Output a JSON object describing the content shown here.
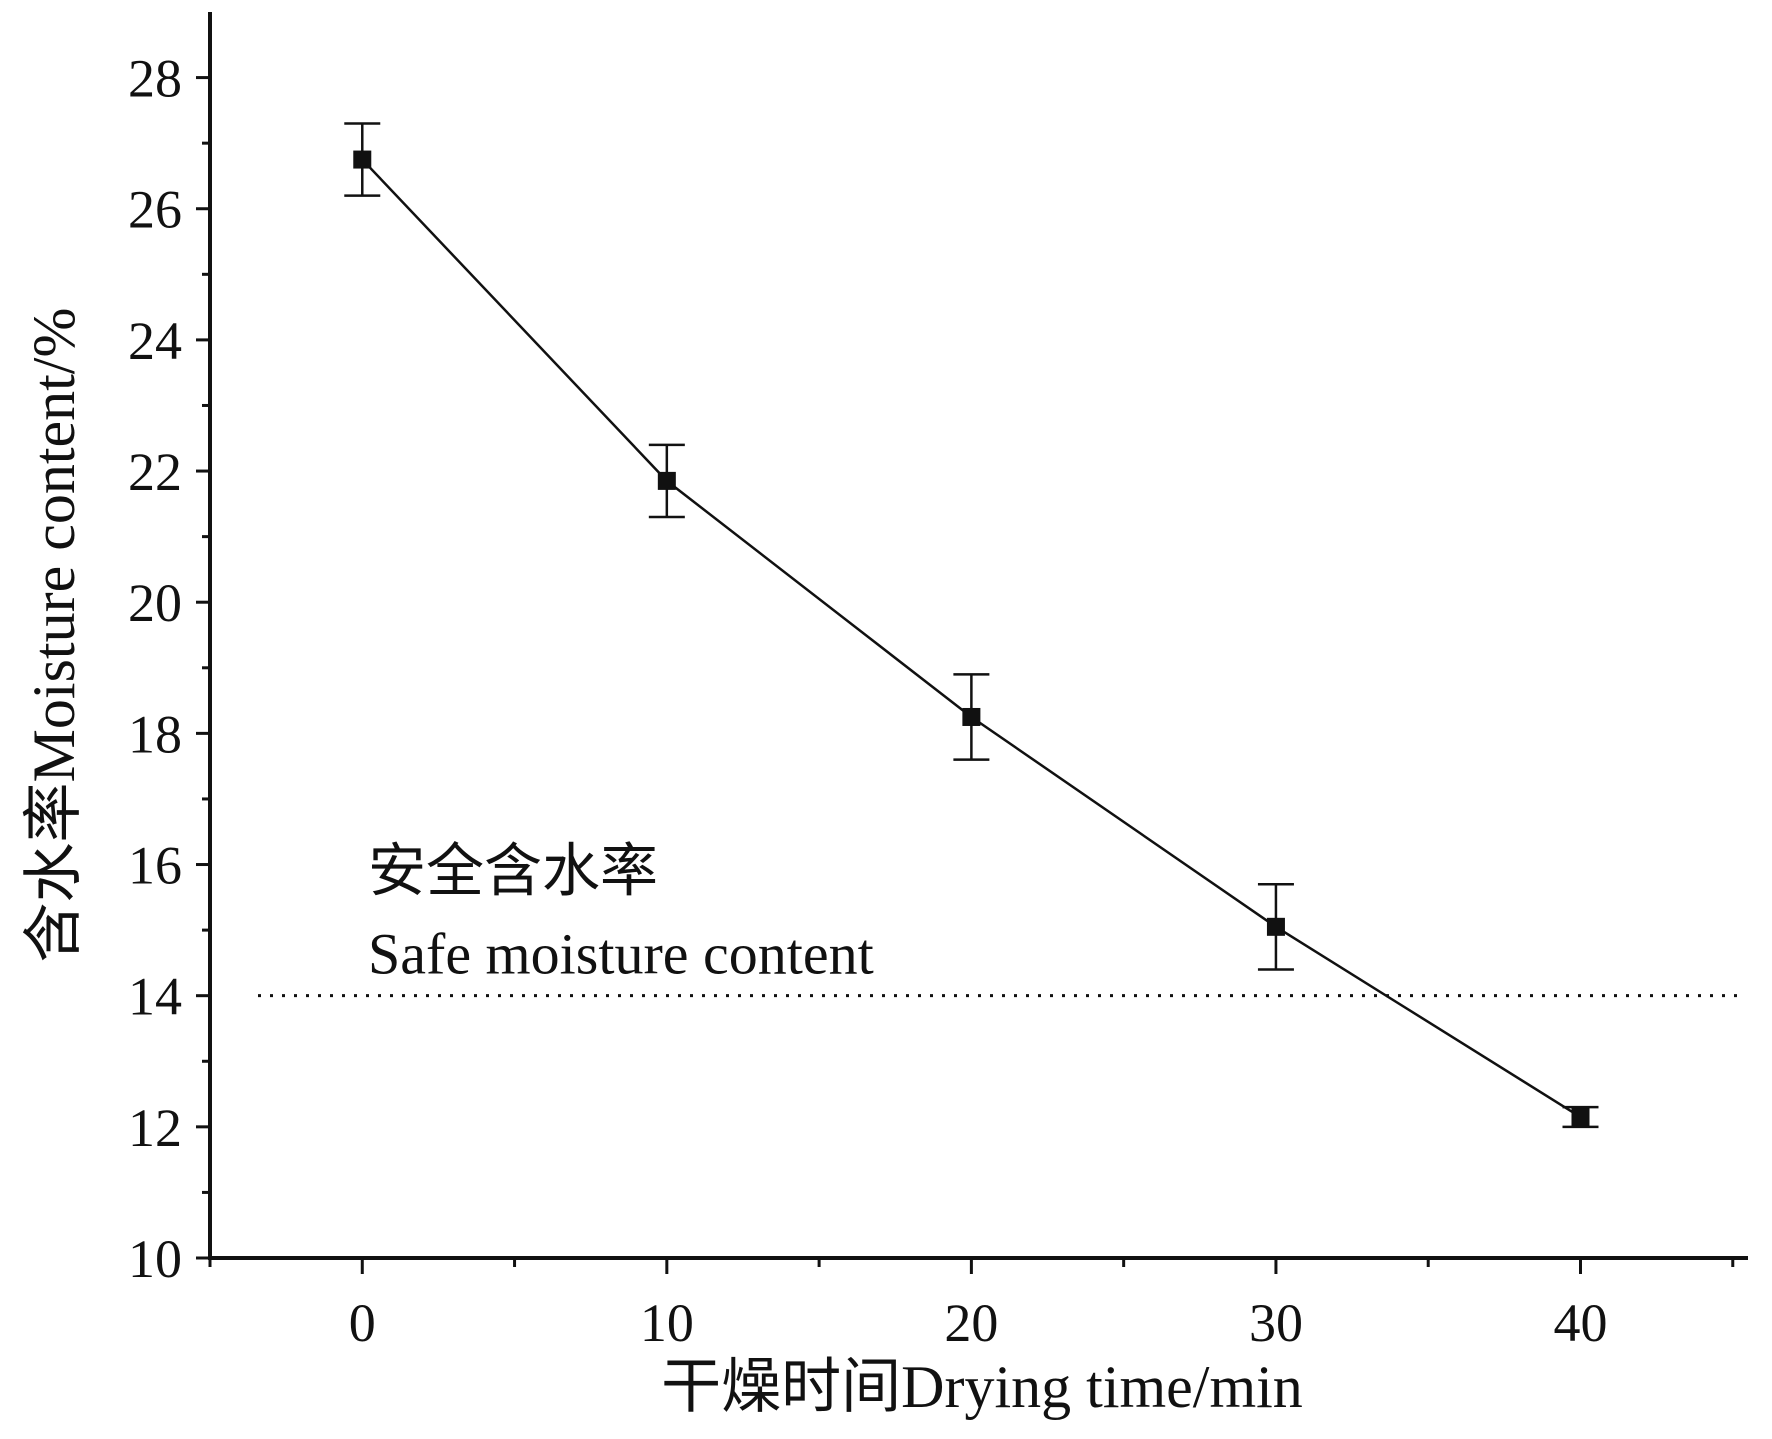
{
  "chart_data": {
    "type": "line",
    "title": "",
    "xlabel": "干燥时间Drying time/min",
    "ylabel": "含水率Moisture content/%",
    "x": [
      0,
      10,
      20,
      30,
      40
    ],
    "series": [
      {
        "name": "",
        "values": [
          26.75,
          21.85,
          18.25,
          15.05,
          12.15
        ],
        "error": [
          0.55,
          0.55,
          0.65,
          0.65,
          0.15
        ],
        "color": "#111111",
        "marker": "square"
      }
    ],
    "xlim": [
      -5,
      45.5
    ],
    "ylim": [
      10,
      29
    ],
    "x_ticks": [
      0,
      10,
      20,
      30,
      40
    ],
    "x_tick_labels": [
      "0",
      "10",
      "20",
      "30",
      "40"
    ],
    "y_ticks": [
      10,
      12,
      14,
      16,
      18,
      20,
      22,
      24,
      26,
      28
    ],
    "y_tick_labels": [
      "10",
      "12",
      "14",
      "16",
      "18",
      "20",
      "22",
      "24",
      "26",
      "28"
    ],
    "reference_line": {
      "y": 14,
      "style": "dotted",
      "label_cn": "安全含水率",
      "label_en": "Safe moisture content"
    },
    "grid": false,
    "legend": "none"
  }
}
